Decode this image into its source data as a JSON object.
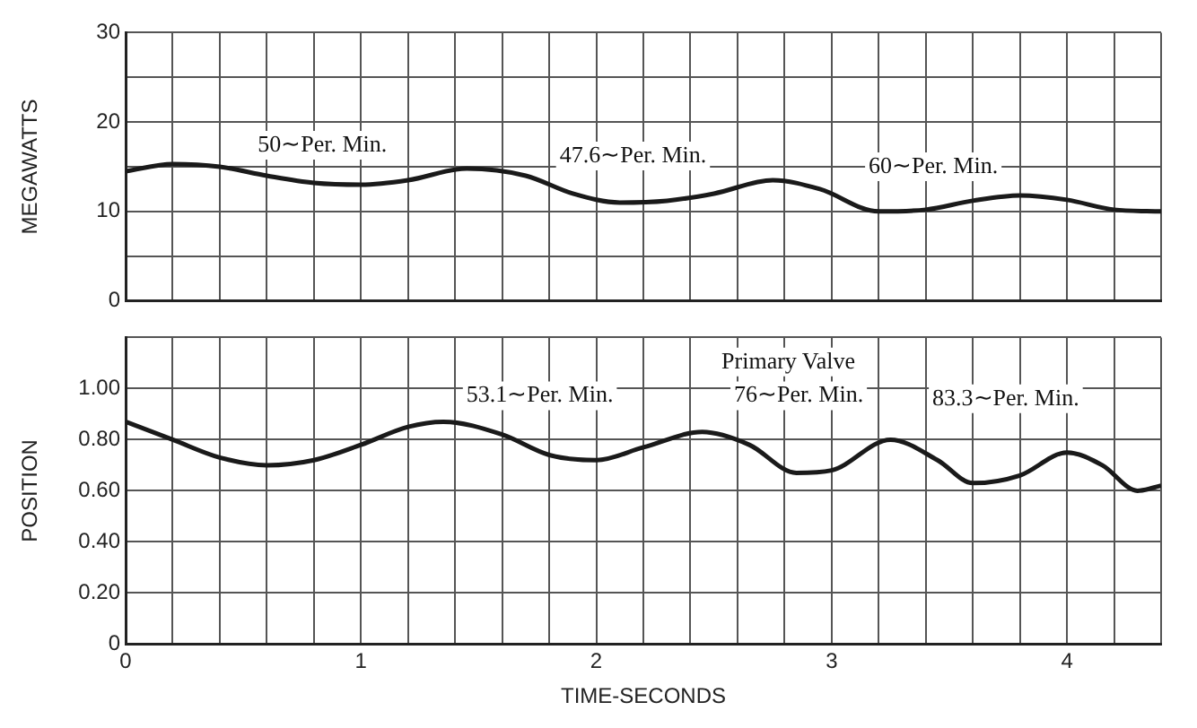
{
  "chart_data": [
    {
      "type": "line",
      "ylabel": "MEGAWATTS",
      "x": [
        0,
        0.2,
        0.4,
        0.6,
        0.8,
        1.0,
        1.2,
        1.45,
        1.7,
        1.9,
        2.1,
        2.3,
        2.5,
        2.75,
        2.95,
        3.2,
        3.4,
        3.6,
        3.8,
        4.0,
        4.2,
        4.4
      ],
      "series": [
        {
          "color": "#1a1a1a",
          "values": [
            14.5,
            15.3,
            15,
            14,
            13.2,
            13,
            13.5,
            14.8,
            14,
            12,
            11,
            11.2,
            12,
            13.5,
            12.5,
            10,
            10.2,
            11.2,
            11.8,
            11.3,
            10.2,
            10
          ]
        }
      ],
      "xlim": [
        0,
        4.4
      ],
      "xticks": [
        {
          "value": 0,
          "label": null
        },
        {
          "value": 0.2,
          "label": null
        },
        {
          "value": 0.4,
          "label": null
        },
        {
          "value": 0.6,
          "label": null
        },
        {
          "value": 0.8,
          "label": null
        },
        {
          "value": 1,
          "label": null
        },
        {
          "value": 1.2,
          "label": null
        },
        {
          "value": 1.4,
          "label": null
        },
        {
          "value": 1.6,
          "label": null
        },
        {
          "value": 1.8,
          "label": null
        },
        {
          "value": 2,
          "label": null
        },
        {
          "value": 2.2,
          "label": null
        },
        {
          "value": 2.4,
          "label": null
        },
        {
          "value": 2.6,
          "label": null
        },
        {
          "value": 2.8,
          "label": null
        },
        {
          "value": 3,
          "label": null
        },
        {
          "value": 3.2,
          "label": null
        },
        {
          "value": 3.4,
          "label": null
        },
        {
          "value": 3.6,
          "label": null
        },
        {
          "value": 3.8,
          "label": null
        },
        {
          "value": 4,
          "label": null
        },
        {
          "value": 4.2,
          "label": null
        },
        {
          "value": 4.4,
          "label": null
        }
      ],
      "ylim": [
        0,
        30
      ],
      "yticks": [
        0,
        {
          "value": 5,
          "label": null
        },
        10,
        {
          "value": 15,
          "label": null
        },
        20,
        {
          "value": 25,
          "label": null
        },
        30
      ],
      "tick_labels": "y",
      "grid": true,
      "marker": "none",
      "line_style": "solid",
      "annotations": [
        "50∼Per. Min.",
        "47.6∼Per. Min.",
        "60∼Per. Min."
      ]
    },
    {
      "type": "line",
      "ylabel": "POSITION",
      "xlabel": "TIME-SECONDS",
      "x": [
        0,
        0.2,
        0.4,
        0.6,
        0.8,
        1.0,
        1.2,
        1.35,
        1.6,
        1.8,
        2.0,
        2.2,
        2.45,
        2.65,
        2.85,
        3.0,
        3.25,
        3.45,
        3.6,
        3.8,
        4.0,
        4.15,
        4.3,
        4.4
      ],
      "series": [
        {
          "color": "#1a1a1a",
          "values": [
            0.87,
            0.8,
            0.73,
            0.7,
            0.72,
            0.78,
            0.85,
            0.87,
            0.82,
            0.74,
            0.72,
            0.77,
            0.83,
            0.78,
            0.67,
            0.68,
            0.8,
            0.72,
            0.63,
            0.66,
            0.75,
            0.7,
            0.6,
            0.62
          ]
        }
      ],
      "xlim": [
        0,
        4.4
      ],
      "xticks": [
        0,
        {
          "value": 0.2,
          "label": null
        },
        {
          "value": 0.4,
          "label": null
        },
        {
          "value": 0.6,
          "label": null
        },
        {
          "value": 0.8,
          "label": null
        },
        1,
        {
          "value": 1.2,
          "label": null
        },
        {
          "value": 1.4,
          "label": null
        },
        {
          "value": 1.6,
          "label": null
        },
        {
          "value": 1.8,
          "label": null
        },
        2,
        {
          "value": 2.2,
          "label": null
        },
        {
          "value": 2.4,
          "label": null
        },
        {
          "value": 2.6,
          "label": null
        },
        {
          "value": 2.8,
          "label": null
        },
        3,
        {
          "value": 3.2,
          "label": null
        },
        {
          "value": 3.4,
          "label": null
        },
        {
          "value": 3.6,
          "label": null
        },
        {
          "value": 3.8,
          "label": null
        },
        4,
        {
          "value": 4.2,
          "label": null
        },
        {
          "value": 4.4,
          "label": null
        }
      ],
      "ylim": [
        0,
        1.2
      ],
      "yticks": [
        0,
        {
          "value": 0.2,
          "label": "0.20"
        },
        {
          "value": 0.4,
          "label": "0.40"
        },
        {
          "value": 0.6,
          "label": "0.60"
        },
        {
          "value": 0.8,
          "label": "0.80"
        },
        {
          "value": 1,
          "label": "1.00"
        },
        {
          "value": 1.2,
          "label": null
        }
      ],
      "grid": true,
      "marker": "none",
      "line_style": "solid",
      "annotations": [
        "Primary Valve",
        "53.1∼Per. Min.",
        "76∼Per. Min.",
        "83.3∼Per. Min."
      ]
    }
  ]
}
